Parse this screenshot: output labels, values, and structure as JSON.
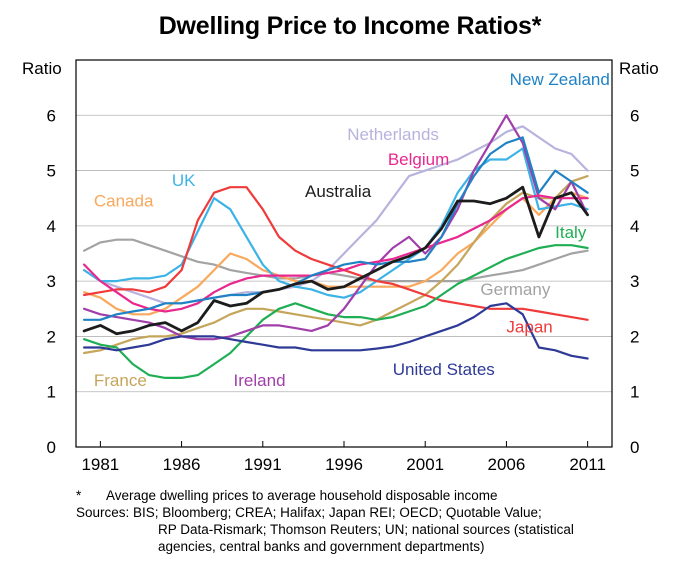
{
  "chart_data": {
    "type": "line",
    "title": "Dwelling Price to Income Ratios*",
    "ylabel_left": "Ratio",
    "ylabel_right": "Ratio",
    "ylim": [
      0,
      7
    ],
    "yticks": [
      0,
      1,
      2,
      3,
      4,
      5,
      6
    ],
    "xlim": [
      1979.5,
      2012.5
    ],
    "xticks": [
      1981,
      1986,
      1991,
      1996,
      2001,
      2006,
      2011
    ],
    "grid": true,
    "legend": "inline labels",
    "series": [
      {
        "name": "Netherlands",
        "color": "#b7b3de",
        "x": [
          1980,
          1981,
          1982,
          1983,
          1984,
          1985,
          1986,
          1987,
          1988,
          1989,
          1990,
          1991,
          1992,
          1993,
          1994,
          1995,
          1996,
          1997,
          1998,
          1999,
          2000,
          2001,
          2002,
          2003,
          2004,
          2005,
          2006,
          2007,
          2008,
          2009,
          2010,
          2011
        ],
        "y": [
          3.2,
          3.0,
          2.9,
          2.8,
          2.7,
          2.6,
          2.6,
          2.65,
          2.7,
          2.75,
          2.8,
          2.8,
          2.85,
          2.9,
          3.0,
          3.2,
          3.5,
          3.8,
          4.1,
          4.5,
          4.9,
          5.0,
          5.1,
          5.2,
          5.35,
          5.5,
          5.7,
          5.8,
          5.6,
          5.4,
          5.3,
          5.0
        ]
      },
      {
        "name": "Germany",
        "color": "#a3a3a3",
        "x": [
          1980,
          1981,
          1982,
          1983,
          1984,
          1985,
          1986,
          1987,
          1988,
          1989,
          1990,
          1991,
          1992,
          1993,
          1994,
          1995,
          1996,
          1997,
          1998,
          1999,
          2000,
          2001,
          2002,
          2003,
          2004,
          2005,
          2006,
          2007,
          2008,
          2009,
          2010,
          2011
        ],
        "y": [
          3.55,
          3.7,
          3.75,
          3.75,
          3.65,
          3.55,
          3.45,
          3.35,
          3.3,
          3.2,
          3.15,
          3.1,
          3.05,
          3.05,
          3.1,
          3.15,
          3.1,
          3.05,
          3.0,
          3.0,
          3.0,
          3.0,
          3.0,
          3.0,
          3.05,
          3.1,
          3.15,
          3.2,
          3.3,
          3.4,
          3.5,
          3.55
        ]
      },
      {
        "name": "Canada",
        "color": "#f9a85c",
        "x": [
          1980,
          1981,
          1982,
          1983,
          1984,
          1985,
          1986,
          1987,
          1988,
          1989,
          1990,
          1991,
          1992,
          1993,
          1994,
          1995,
          1996,
          1997,
          1998,
          1999,
          2000,
          2001,
          2002,
          2003,
          2004,
          2005,
          2006,
          2007,
          2008,
          2009,
          2010,
          2011
        ],
        "y": [
          2.8,
          2.7,
          2.5,
          2.4,
          2.4,
          2.5,
          2.7,
          2.9,
          3.2,
          3.5,
          3.4,
          3.2,
          3.1,
          3.0,
          3.0,
          2.9,
          2.9,
          2.9,
          2.9,
          2.9,
          2.9,
          3.0,
          3.2,
          3.5,
          3.7,
          4.0,
          4.3,
          4.5,
          4.2,
          4.5,
          4.6,
          4.5
        ]
      },
      {
        "name": "France",
        "color": "#c5a55a",
        "x": [
          1980,
          1981,
          1982,
          1983,
          1984,
          1985,
          1986,
          1987,
          1988,
          1989,
          1990,
          1991,
          1992,
          1993,
          1994,
          1995,
          1996,
          1997,
          1998,
          1999,
          2000,
          2001,
          2002,
          2003,
          2004,
          2005,
          2006,
          2007,
          2008,
          2009,
          2010,
          2011
        ],
        "y": [
          1.7,
          1.75,
          1.85,
          1.95,
          2.0,
          2.0,
          2.05,
          2.15,
          2.25,
          2.4,
          2.5,
          2.5,
          2.45,
          2.4,
          2.35,
          2.3,
          2.25,
          2.2,
          2.3,
          2.45,
          2.6,
          2.75,
          3.0,
          3.3,
          3.7,
          4.1,
          4.4,
          4.6,
          4.5,
          4.5,
          4.8,
          4.9
        ]
      },
      {
        "name": "UK",
        "color": "#3cb3e6",
        "x": [
          1980,
          1981,
          1982,
          1983,
          1984,
          1985,
          1986,
          1987,
          1988,
          1989,
          1990,
          1991,
          1992,
          1993,
          1994,
          1995,
          1996,
          1997,
          1998,
          1999,
          2000,
          2001,
          2002,
          2003,
          2004,
          2005,
          2006,
          2007,
          2008,
          2009,
          2010,
          2011
        ],
        "y": [
          3.2,
          3.0,
          3.0,
          3.05,
          3.05,
          3.1,
          3.3,
          3.9,
          4.5,
          4.3,
          3.8,
          3.3,
          3.0,
          2.9,
          2.85,
          2.75,
          2.7,
          2.8,
          3.0,
          3.2,
          3.4,
          3.6,
          4.0,
          4.6,
          5.0,
          5.2,
          5.2,
          5.4,
          4.3,
          4.35,
          4.4,
          4.3
        ]
      },
      {
        "name": "Japan",
        "color": "#ef3b3b",
        "x": [
          1980,
          1981,
          1982,
          1983,
          1984,
          1985,
          1986,
          1987,
          1988,
          1989,
          1990,
          1991,
          1992,
          1993,
          1994,
          1995,
          1996,
          1997,
          1998,
          1999,
          2000,
          2001,
          2002,
          2003,
          2004,
          2005,
          2006,
          2007,
          2008,
          2009,
          2010,
          2011
        ],
        "y": [
          2.75,
          2.8,
          2.85,
          2.85,
          2.8,
          2.9,
          3.2,
          4.1,
          4.6,
          4.7,
          4.7,
          4.3,
          3.8,
          3.55,
          3.4,
          3.3,
          3.2,
          3.1,
          3.0,
          2.95,
          2.85,
          2.75,
          2.65,
          2.6,
          2.55,
          2.5,
          2.5,
          2.5,
          2.45,
          2.4,
          2.35,
          2.3
        ]
      },
      {
        "name": "Italy",
        "color": "#1fae54",
        "x": [
          1980,
          1981,
          1982,
          1983,
          1984,
          1985,
          1986,
          1987,
          1988,
          1989,
          1990,
          1991,
          1992,
          1993,
          1994,
          1995,
          1996,
          1997,
          1998,
          1999,
          2000,
          2001,
          2002,
          2003,
          2004,
          2005,
          2006,
          2007,
          2008,
          2009,
          2010,
          2011
        ],
        "y": [
          1.95,
          1.85,
          1.8,
          1.5,
          1.3,
          1.25,
          1.25,
          1.3,
          1.5,
          1.7,
          2.0,
          2.3,
          2.5,
          2.6,
          2.5,
          2.4,
          2.35,
          2.35,
          2.3,
          2.35,
          2.45,
          2.55,
          2.75,
          2.95,
          3.1,
          3.25,
          3.4,
          3.5,
          3.6,
          3.65,
          3.65,
          3.6
        ]
      },
      {
        "name": "Ireland",
        "color": "#a03fa9",
        "x": [
          1980,
          1981,
          1982,
          1983,
          1984,
          1985,
          1986,
          1987,
          1988,
          1989,
          1990,
          1991,
          1992,
          1993,
          1994,
          1995,
          1996,
          1997,
          1998,
          1999,
          2000,
          2001,
          2002,
          2003,
          2004,
          2005,
          2006,
          2007,
          2008,
          2009,
          2010,
          2011
        ],
        "y": [
          2.5,
          2.4,
          2.35,
          2.3,
          2.25,
          2.15,
          2.0,
          1.95,
          1.95,
          2.0,
          2.1,
          2.2,
          2.2,
          2.15,
          2.1,
          2.2,
          2.5,
          2.9,
          3.3,
          3.6,
          3.8,
          3.5,
          3.8,
          4.3,
          5.0,
          5.5,
          6.0,
          5.5,
          4.5,
          4.3,
          4.8,
          4.2
        ]
      },
      {
        "name": "Belgium",
        "color": "#e8278f",
        "x": [
          1980,
          1981,
          1982,
          1983,
          1984,
          1985,
          1986,
          1987,
          1988,
          1989,
          1990,
          1991,
          1992,
          1993,
          1994,
          1995,
          1996,
          1997,
          1998,
          1999,
          2000,
          2001,
          2002,
          2003,
          2004,
          2005,
          2006,
          2007,
          2008,
          2009,
          2010,
          2011
        ],
        "y": [
          3.3,
          3.0,
          2.8,
          2.6,
          2.5,
          2.45,
          2.5,
          2.6,
          2.8,
          2.95,
          3.05,
          3.1,
          3.1,
          3.1,
          3.1,
          3.15,
          3.2,
          3.3,
          3.35,
          3.4,
          3.5,
          3.6,
          3.7,
          3.8,
          3.95,
          4.1,
          4.3,
          4.5,
          4.55,
          4.5,
          4.5,
          4.5
        ]
      },
      {
        "name": "New Zealand",
        "color": "#1e82c4",
        "x": [
          1980,
          1981,
          1982,
          1983,
          1984,
          1985,
          1986,
          1987,
          1988,
          1989,
          1990,
          1991,
          1992,
          1993,
          1994,
          1995,
          1996,
          1997,
          1998,
          1999,
          2000,
          2001,
          2002,
          2003,
          2004,
          2005,
          2006,
          2007,
          2008,
          2009,
          2010,
          2011
        ],
        "y": [
          2.3,
          2.3,
          2.4,
          2.45,
          2.5,
          2.6,
          2.6,
          2.65,
          2.7,
          2.75,
          2.75,
          2.8,
          2.85,
          2.95,
          3.1,
          3.2,
          3.3,
          3.35,
          3.3,
          3.35,
          3.35,
          3.4,
          3.8,
          4.4,
          4.9,
          5.3,
          5.5,
          5.6,
          4.6,
          5.0,
          4.8,
          4.6
        ]
      },
      {
        "name": "Australia",
        "color": "#1c1c1c",
        "x": [
          1980,
          1981,
          1982,
          1983,
          1984,
          1985,
          1986,
          1987,
          1988,
          1989,
          1990,
          1991,
          1992,
          1993,
          1994,
          1995,
          1996,
          1997,
          1998,
          1999,
          2000,
          2001,
          2002,
          2003,
          2004,
          2005,
          2006,
          2007,
          2008,
          2009,
          2010,
          2011
        ],
        "y": [
          2.1,
          2.2,
          2.05,
          2.1,
          2.2,
          2.25,
          2.1,
          2.25,
          2.65,
          2.55,
          2.6,
          2.8,
          2.85,
          2.95,
          3.0,
          2.85,
          2.9,
          3.05,
          3.2,
          3.35,
          3.45,
          3.6,
          3.95,
          4.45,
          4.45,
          4.4,
          4.5,
          4.7,
          3.8,
          4.5,
          4.6,
          4.2
        ]
      },
      {
        "name": "United States",
        "color": "#2e3a96",
        "x": [
          1980,
          1981,
          1982,
          1983,
          1984,
          1985,
          1986,
          1987,
          1988,
          1989,
          1990,
          1991,
          1992,
          1993,
          1994,
          1995,
          1996,
          1997,
          1998,
          1999,
          2000,
          2001,
          2002,
          2003,
          2004,
          2005,
          2006,
          2007,
          2008,
          2009,
          2010,
          2011
        ],
        "y": [
          1.8,
          1.8,
          1.75,
          1.8,
          1.85,
          1.95,
          2.0,
          2.0,
          2.0,
          1.95,
          1.9,
          1.85,
          1.8,
          1.8,
          1.75,
          1.75,
          1.75,
          1.75,
          1.78,
          1.82,
          1.9,
          2.0,
          2.1,
          2.2,
          2.35,
          2.55,
          2.6,
          2.4,
          1.8,
          1.75,
          1.65,
          1.6
        ]
      }
    ],
    "labels": [
      {
        "text": "New Zealand",
        "series": "New Zealand",
        "color": "#1e82c4",
        "x": 2006.2,
        "y": 6.55
      },
      {
        "text": "Netherlands",
        "series": "Netherlands",
        "color": "#b7b3de",
        "x": 1996.2,
        "y": 5.55
      },
      {
        "text": "Belgium",
        "series": "Belgium",
        "color": "#e8278f",
        "x": 1998.7,
        "y": 5.1
      },
      {
        "text": "Australia",
        "series": "Australia",
        "color": "#1c1c1c",
        "x": 1993.6,
        "y": 4.52
      },
      {
        "text": "UK",
        "series": "UK",
        "color": "#3cb3e6",
        "x": 1985.4,
        "y": 4.72
      },
      {
        "text": "Canada",
        "series": "Canada",
        "color": "#f9a85c",
        "x": 1980.6,
        "y": 4.35
      },
      {
        "text": "Italy",
        "series": "Italy",
        "color": "#1fae54",
        "x": 2009.0,
        "y": 3.78
      },
      {
        "text": "Germany",
        "series": "Germany",
        "color": "#a3a3a3",
        "x": 2004.4,
        "y": 2.75
      },
      {
        "text": "Japan",
        "series": "Japan",
        "color": "#ef3b3b",
        "x": 2006.0,
        "y": 2.07
      },
      {
        "text": "United States",
        "series": "United States",
        "color": "#2e3a96",
        "x": 1999.0,
        "y": 1.3
      },
      {
        "text": "Ireland",
        "series": "Ireland",
        "color": "#a03fa9",
        "x": 1989.2,
        "y": 1.1
      },
      {
        "text": "France",
        "series": "France",
        "color": "#c5a55a",
        "x": 1980.6,
        "y": 1.1
      }
    ]
  },
  "footnote": {
    "marker": "*",
    "definition": "Average dwelling prices to average household disposable income",
    "sources_line1": "Sources: BIS; Bloomberg; CREA; Halifax; Japan REI; OECD; Quotable Value;",
    "sources_line2": "RP Data-Rismark; Thomson Reuters; UN; national sources (statistical",
    "sources_line3": "agencies, central banks and government departments)"
  }
}
